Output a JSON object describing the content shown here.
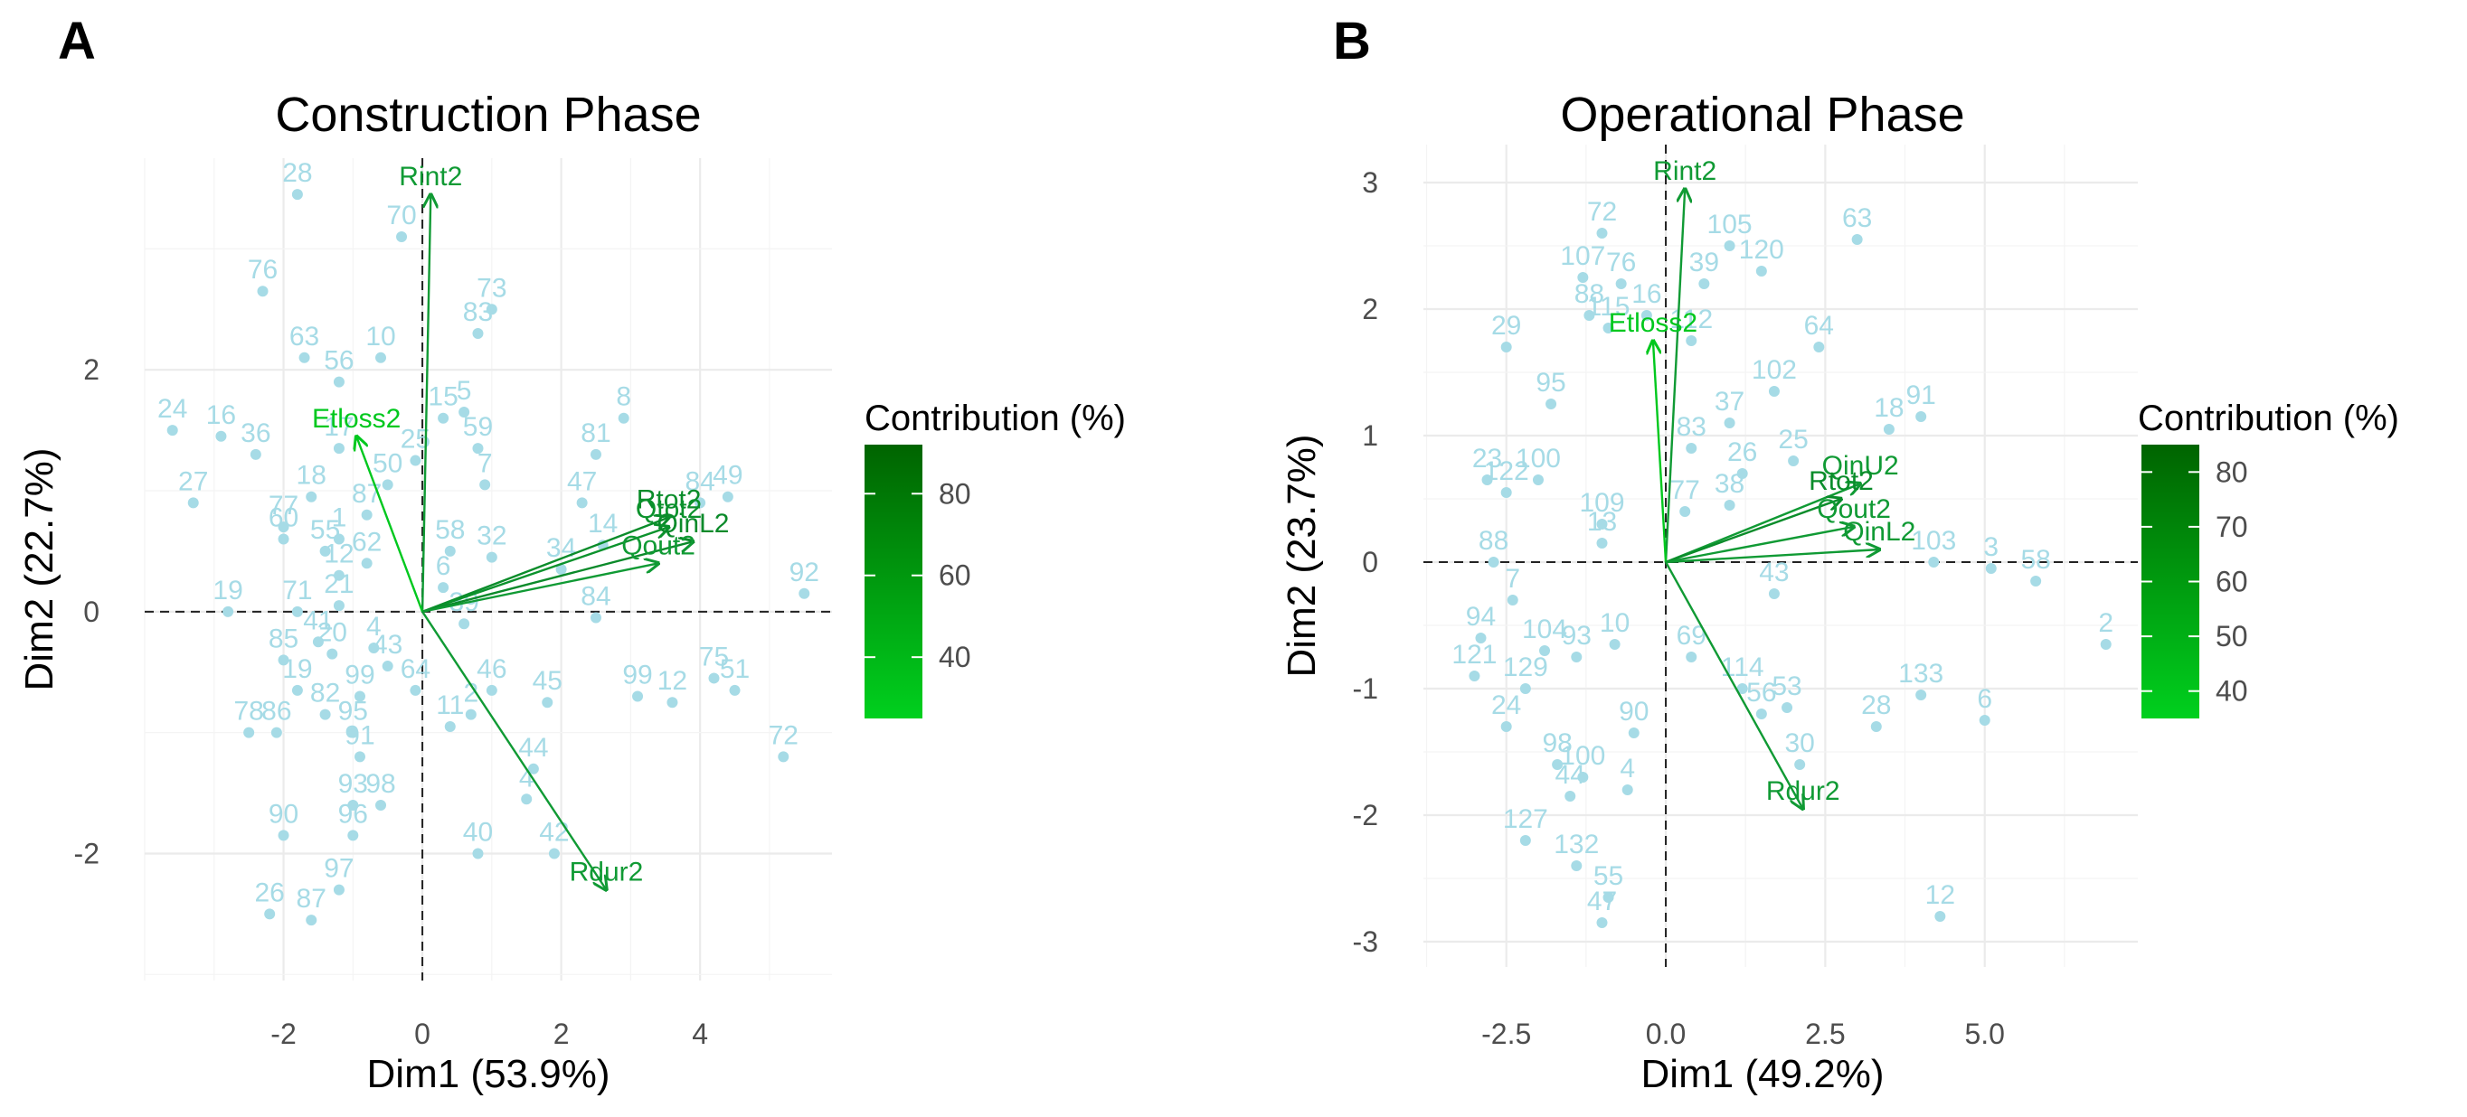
{
  "chart_data": [
    {
      "type": "scatter",
      "panel_label": "A",
      "title": "Construction Phase",
      "xlabel": "Dim1 (53.9%)",
      "ylabel": "Dim2 (22.7%)",
      "xlim": [
        -4.0,
        5.9
      ],
      "ylim": [
        -3.05,
        3.75
      ],
      "xticks": [
        -2,
        0,
        2,
        4
      ],
      "xtick_labels": [
        "-2",
        "0",
        "2",
        "4"
      ],
      "yticks": [
        -2,
        0,
        2
      ],
      "ytick_labels": [
        "-2",
        "0",
        "2"
      ],
      "grid": true,
      "reference_lines": "dashed lines at x=0 and y=0",
      "point_color": "#a6dbe6",
      "points": [
        {
          "label": "28",
          "x": -1.8,
          "y": 3.45
        },
        {
          "label": "70",
          "x": -0.3,
          "y": 3.1
        },
        {
          "label": "76",
          "x": -2.3,
          "y": 2.65
        },
        {
          "label": "73",
          "x": 1.0,
          "y": 2.5
        },
        {
          "label": "83",
          "x": 0.8,
          "y": 2.3
        },
        {
          "label": "63",
          "x": -1.7,
          "y": 2.1
        },
        {
          "label": "10",
          "x": -0.6,
          "y": 2.1
        },
        {
          "label": "56",
          "x": -1.2,
          "y": 1.9
        },
        {
          "label": "24",
          "x": -3.6,
          "y": 1.5
        },
        {
          "label": "16",
          "x": -2.9,
          "y": 1.45
        },
        {
          "label": "5",
          "x": 0.6,
          "y": 1.65
        },
        {
          "label": "15",
          "x": 0.3,
          "y": 1.6
        },
        {
          "label": "36",
          "x": -2.4,
          "y": 1.3
        },
        {
          "label": "59",
          "x": 0.8,
          "y": 1.35
        },
        {
          "label": "8",
          "x": 2.9,
          "y": 1.6
        },
        {
          "label": "81",
          "x": 2.5,
          "y": 1.3
        },
        {
          "label": "17",
          "x": -1.2,
          "y": 1.35
        },
        {
          "label": "25",
          "x": -0.1,
          "y": 1.25
        },
        {
          "label": "7",
          "x": 0.9,
          "y": 1.05
        },
        {
          "label": "27",
          "x": -3.3,
          "y": 0.9
        },
        {
          "label": "50",
          "x": -0.5,
          "y": 1.05
        },
        {
          "label": "47",
          "x": 2.3,
          "y": 0.9
        },
        {
          "label": "49",
          "x": 4.4,
          "y": 0.95
        },
        {
          "label": "84",
          "x": 4.0,
          "y": 0.9
        },
        {
          "label": "18",
          "x": -1.6,
          "y": 0.95
        },
        {
          "label": "77",
          "x": -2.0,
          "y": 0.7
        },
        {
          "label": "87",
          "x": -0.8,
          "y": 0.8
        },
        {
          "label": "60",
          "x": -2.0,
          "y": 0.6
        },
        {
          "label": "1",
          "x": -1.2,
          "y": 0.6
        },
        {
          "label": "55",
          "x": -1.4,
          "y": 0.5
        },
        {
          "label": "58",
          "x": 0.4,
          "y": 0.5
        },
        {
          "label": "32",
          "x": 1.0,
          "y": 0.45
        },
        {
          "label": "14",
          "x": 2.6,
          "y": 0.55
        },
        {
          "label": "34",
          "x": 2.0,
          "y": 0.35
        },
        {
          "label": "62",
          "x": -0.8,
          "y": 0.4
        },
        {
          "label": "12",
          "x": -1.2,
          "y": 0.3
        },
        {
          "label": "6",
          "x": 0.3,
          "y": 0.2
        },
        {
          "label": "92",
          "x": 5.5,
          "y": 0.15
        },
        {
          "label": "19",
          "x": -2.8,
          "y": 0.0
        },
        {
          "label": "71",
          "x": -1.8,
          "y": 0.0
        },
        {
          "label": "21",
          "x": -1.2,
          "y": 0.05
        },
        {
          "label": "39",
          "x": 0.6,
          "y": -0.1
        },
        {
          "label": "84",
          "x": 2.5,
          "y": -0.05
        },
        {
          "label": "41",
          "x": -1.5,
          "y": -0.25
        },
        {
          "label": "4",
          "x": -0.7,
          "y": -0.3
        },
        {
          "label": "85",
          "x": -2.0,
          "y": -0.4
        },
        {
          "label": "20",
          "x": -1.3,
          "y": -0.35
        },
        {
          "label": "43",
          "x": -0.5,
          "y": -0.45
        },
        {
          "label": "75",
          "x": 4.2,
          "y": -0.55
        },
        {
          "label": "51",
          "x": 4.5,
          "y": -0.65
        },
        {
          "label": "99",
          "x": 3.1,
          "y": -0.7
        },
        {
          "label": "12",
          "x": 3.6,
          "y": -0.75
        },
        {
          "label": "19",
          "x": -1.8,
          "y": -0.65
        },
        {
          "label": "99",
          "x": -0.9,
          "y": -0.7
        },
        {
          "label": "64",
          "x": -0.1,
          "y": -0.65
        },
        {
          "label": "46",
          "x": 1.0,
          "y": -0.65
        },
        {
          "label": "2",
          "x": 0.7,
          "y": -0.85
        },
        {
          "label": "45",
          "x": 1.8,
          "y": -0.75
        },
        {
          "label": "82",
          "x": -1.4,
          "y": -0.85
        },
        {
          "label": "78",
          "x": -2.5,
          "y": -1.0
        },
        {
          "label": "86",
          "x": -2.1,
          "y": -1.0
        },
        {
          "label": "95",
          "x": -1.0,
          "y": -1.0
        },
        {
          "label": "11",
          "x": 0.4,
          "y": -0.95
        },
        {
          "label": "72",
          "x": 5.2,
          "y": -1.2
        },
        {
          "label": "91",
          "x": -0.9,
          "y": -1.2
        },
        {
          "label": "44",
          "x": 1.6,
          "y": -1.3
        },
        {
          "label": "4",
          "x": 1.5,
          "y": -1.55
        },
        {
          "label": "93",
          "x": -1.0,
          "y": -1.6
        },
        {
          "label": "98",
          "x": -0.6,
          "y": -1.6
        },
        {
          "label": "90",
          "x": -2.0,
          "y": -1.85
        },
        {
          "label": "96",
          "x": -1.0,
          "y": -1.85
        },
        {
          "label": "40",
          "x": 0.8,
          "y": -2.0
        },
        {
          "label": "42",
          "x": 1.9,
          "y": -2.0
        },
        {
          "label": "97",
          "x": -1.2,
          "y": -2.3
        },
        {
          "label": "26",
          "x": -2.2,
          "y": -2.5
        },
        {
          "label": "87",
          "x": -1.6,
          "y": -2.55
        }
      ],
      "vectors": [
        {
          "label": "Rint2",
          "x": 0.12,
          "y": 3.45,
          "color": "#109a34"
        },
        {
          "label": "Etloss2",
          "x": -0.95,
          "y": 1.45,
          "color": "#00c81e"
        },
        {
          "label": "Rtot2",
          "x": 3.55,
          "y": 0.78,
          "color": "#0a8c2a"
        },
        {
          "label": "Qtot2",
          "x": 3.55,
          "y": 0.7,
          "color": "#0b922c"
        },
        {
          "label": "QinL2",
          "x": 3.9,
          "y": 0.58,
          "color": "#0b8a2a"
        },
        {
          "label": "Qout2",
          "x": 3.4,
          "y": 0.4,
          "color": "#109a34"
        },
        {
          "label": "Rdur2",
          "x": 2.65,
          "y": -2.3,
          "color": "#109a34"
        }
      ],
      "legend": {
        "title": "Contribution (%)",
        "ticks": [
          40,
          60,
          80
        ],
        "range": [
          25,
          92
        ],
        "color_low": "#00d01e",
        "color_high": "#006400",
        "position": "right"
      }
    },
    {
      "type": "scatter",
      "panel_label": "B",
      "title": "Operational Phase",
      "xlabel": "Dim1 (49.2%)",
      "ylabel": "Dim2 (23.7%)",
      "xlim": [
        -3.8,
        7.4
      ],
      "ylim": [
        -3.2,
        3.3
      ],
      "xticks": [
        -2.5,
        0.0,
        2.5,
        5.0
      ],
      "xtick_labels": [
        "-2.5",
        "0.0",
        "2.5",
        "5.0"
      ],
      "yticks": [
        -3,
        -2,
        -1,
        0,
        1,
        2,
        3
      ],
      "ytick_labels": [
        "-3",
        "-2",
        "-1",
        "0",
        "1",
        "2",
        "3"
      ],
      "grid": true,
      "reference_lines": "dashed lines at x=0 and y=0",
      "point_color": "#a6dbe6",
      "points": [
        {
          "label": "72",
          "x": -1.0,
          "y": 2.6
        },
        {
          "label": "105",
          "x": 1.0,
          "y": 2.5
        },
        {
          "label": "63",
          "x": 3.0,
          "y": 2.55
        },
        {
          "label": "120",
          "x": 1.5,
          "y": 2.3
        },
        {
          "label": "107",
          "x": -1.3,
          "y": 2.25
        },
        {
          "label": "76",
          "x": -0.7,
          "y": 2.2
        },
        {
          "label": "39",
          "x": 0.6,
          "y": 2.2
        },
        {
          "label": "16",
          "x": -0.3,
          "y": 1.95
        },
        {
          "label": "29",
          "x": -2.5,
          "y": 1.7
        },
        {
          "label": "88",
          "x": -1.2,
          "y": 1.95
        },
        {
          "label": "115",
          "x": -0.9,
          "y": 1.85
        },
        {
          "label": "64",
          "x": 2.4,
          "y": 1.7
        },
        {
          "label": "112",
          "x": 0.4,
          "y": 1.75
        },
        {
          "label": "102",
          "x": 1.7,
          "y": 1.35
        },
        {
          "label": "95",
          "x": -1.8,
          "y": 1.25
        },
        {
          "label": "18",
          "x": 3.5,
          "y": 1.05
        },
        {
          "label": "91",
          "x": 4.0,
          "y": 1.15
        },
        {
          "label": "37",
          "x": 1.0,
          "y": 1.1
        },
        {
          "label": "83",
          "x": 0.4,
          "y": 0.9
        },
        {
          "label": "26",
          "x": 1.2,
          "y": 0.7
        },
        {
          "label": "25",
          "x": 2.0,
          "y": 0.8
        },
        {
          "label": "23",
          "x": -2.8,
          "y": 0.65
        },
        {
          "label": "122",
          "x": -2.5,
          "y": 0.55
        },
        {
          "label": "100",
          "x": -2.0,
          "y": 0.65
        },
        {
          "label": "77",
          "x": 0.3,
          "y": 0.4
        },
        {
          "label": "38",
          "x": 1.0,
          "y": 0.45
        },
        {
          "label": "109",
          "x": -1.0,
          "y": 0.3
        },
        {
          "label": "103",
          "x": 4.2,
          "y": 0.0
        },
        {
          "label": "3",
          "x": 5.1,
          "y": -0.05
        },
        {
          "label": "58",
          "x": 5.8,
          "y": -0.15
        },
        {
          "label": "88",
          "x": -2.7,
          "y": 0.0
        },
        {
          "label": "13",
          "x": -1.0,
          "y": 0.15
        },
        {
          "label": "43",
          "x": 1.7,
          "y": -0.25
        },
        {
          "label": "2",
          "x": 6.9,
          "y": -0.65
        },
        {
          "label": "94",
          "x": -2.9,
          "y": -0.6
        },
        {
          "label": "7",
          "x": -2.4,
          "y": -0.3
        },
        {
          "label": "121",
          "x": -3.0,
          "y": -0.9
        },
        {
          "label": "104",
          "x": -1.9,
          "y": -0.7
        },
        {
          "label": "93",
          "x": -1.4,
          "y": -0.75
        },
        {
          "label": "10",
          "x": -0.8,
          "y": -0.65
        },
        {
          "label": "69",
          "x": 0.4,
          "y": -0.75
        },
        {
          "label": "133",
          "x": 4.0,
          "y": -1.05
        },
        {
          "label": "129",
          "x": -2.2,
          "y": -1.0
        },
        {
          "label": "114",
          "x": 1.2,
          "y": -1.0
        },
        {
          "label": "53",
          "x": 1.9,
          "y": -1.15
        },
        {
          "label": "28",
          "x": 3.3,
          "y": -1.3
        },
        {
          "label": "6",
          "x": 5.0,
          "y": -1.25
        },
        {
          "label": "24",
          "x": -2.5,
          "y": -1.3
        },
        {
          "label": "56",
          "x": 1.5,
          "y": -1.2
        },
        {
          "label": "90",
          "x": -0.5,
          "y": -1.35
        },
        {
          "label": "30",
          "x": 2.1,
          "y": -1.6
        },
        {
          "label": "98",
          "x": -1.7,
          "y": -1.6
        },
        {
          "label": "100",
          "x": -1.3,
          "y": -1.7
        },
        {
          "label": "4",
          "x": -0.6,
          "y": -1.8
        },
        {
          "label": "44",
          "x": -1.5,
          "y": -1.85
        },
        {
          "label": "127",
          "x": -2.2,
          "y": -2.2
        },
        {
          "label": "132",
          "x": -1.4,
          "y": -2.4
        },
        {
          "label": "55",
          "x": -0.9,
          "y": -2.65
        },
        {
          "label": "47",
          "x": -1.0,
          "y": -2.85
        },
        {
          "label": "12",
          "x": 4.3,
          "y": -2.8
        }
      ],
      "vectors": [
        {
          "label": "Rint2",
          "x": 0.3,
          "y": 2.95,
          "color": "#109a34"
        },
        {
          "label": "Etloss2",
          "x": -0.2,
          "y": 1.75,
          "color": "#00c81e"
        },
        {
          "label": "QinU2",
          "x": 3.05,
          "y": 0.62,
          "color": "#109a34"
        },
        {
          "label": "Rtot2",
          "x": 2.75,
          "y": 0.5,
          "color": "#0a8c2a"
        },
        {
          "label": "Qout2",
          "x": 2.95,
          "y": 0.28,
          "color": "#109a34"
        },
        {
          "label": "QinL2",
          "x": 3.35,
          "y": 0.1,
          "color": "#109a34"
        },
        {
          "label": "Rdur2",
          "x": 2.15,
          "y": -1.95,
          "color": "#109a34"
        }
      ],
      "legend": {
        "title": "Contribution (%)",
        "ticks": [
          40,
          50,
          60,
          70,
          80
        ],
        "range": [
          35,
          85
        ],
        "color_low": "#00d01e",
        "color_high": "#006400",
        "position": "right"
      }
    }
  ]
}
